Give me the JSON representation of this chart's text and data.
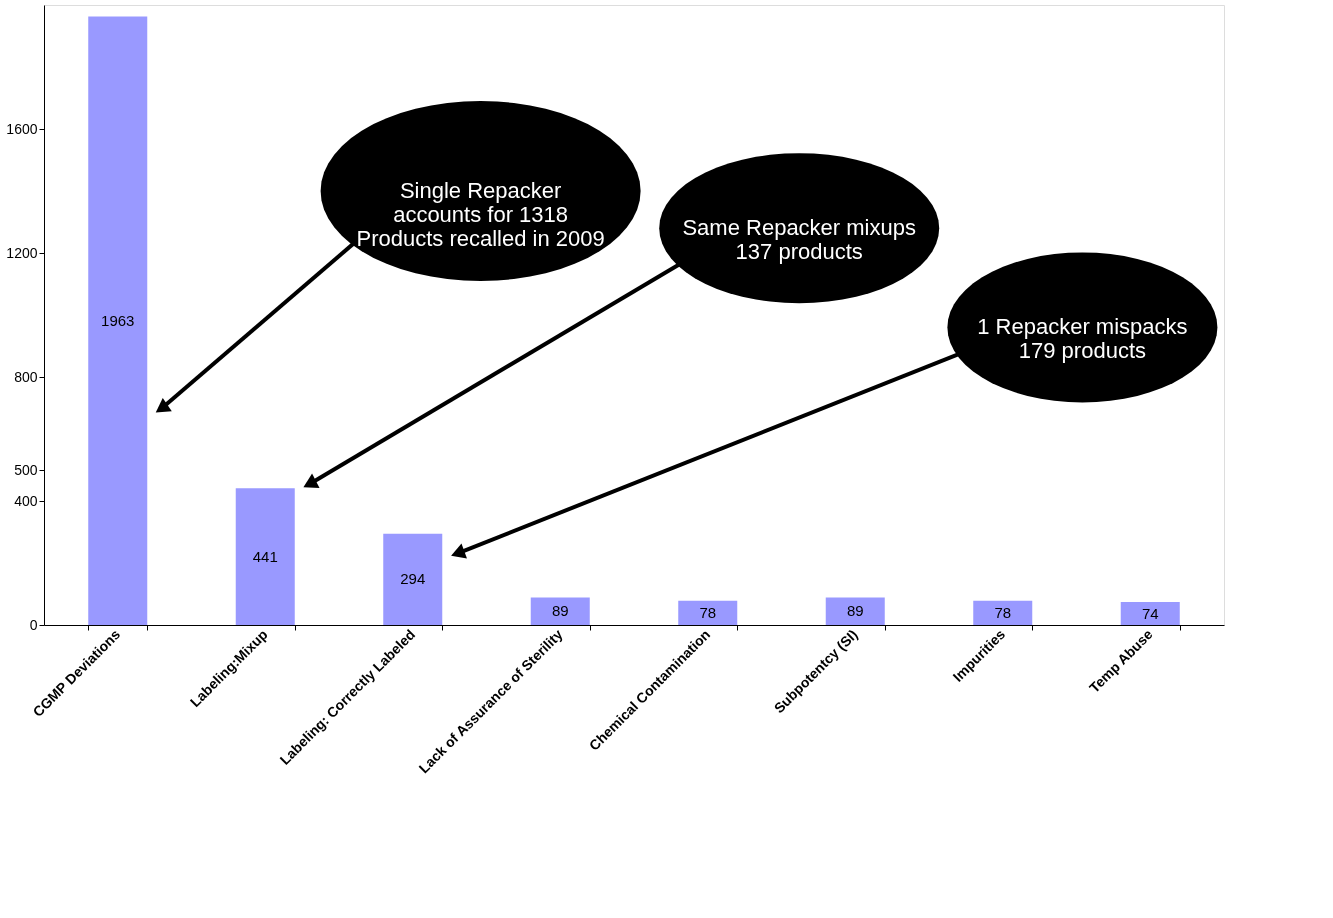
{
  "chart_data": {
    "type": "bar",
    "categories": [
      "CGMP Deviations",
      "Labeling:Mixup",
      "Labeling: Correctly Labeled",
      "Lack of Assurance of Sterility",
      "Chemical Contamination",
      "Subpotentcy (SI)",
      "Impurities",
      "Temp Abuse"
    ],
    "values": [
      1963,
      441,
      294,
      89,
      78,
      89,
      78,
      74
    ],
    "color": "#9999ff",
    "data_labels": true,
    "ylim": [
      0,
      2000
    ],
    "yticks": [
      0,
      400,
      500,
      800,
      1200,
      1600
    ],
    "grid": false,
    "annotations": [
      "Single Repacker\naccounts for 1318\nProducts recalled in 2009",
      "Same Repacker mixups\n137 products",
      "1 Repacker mispacks\n179 products"
    ]
  }
}
